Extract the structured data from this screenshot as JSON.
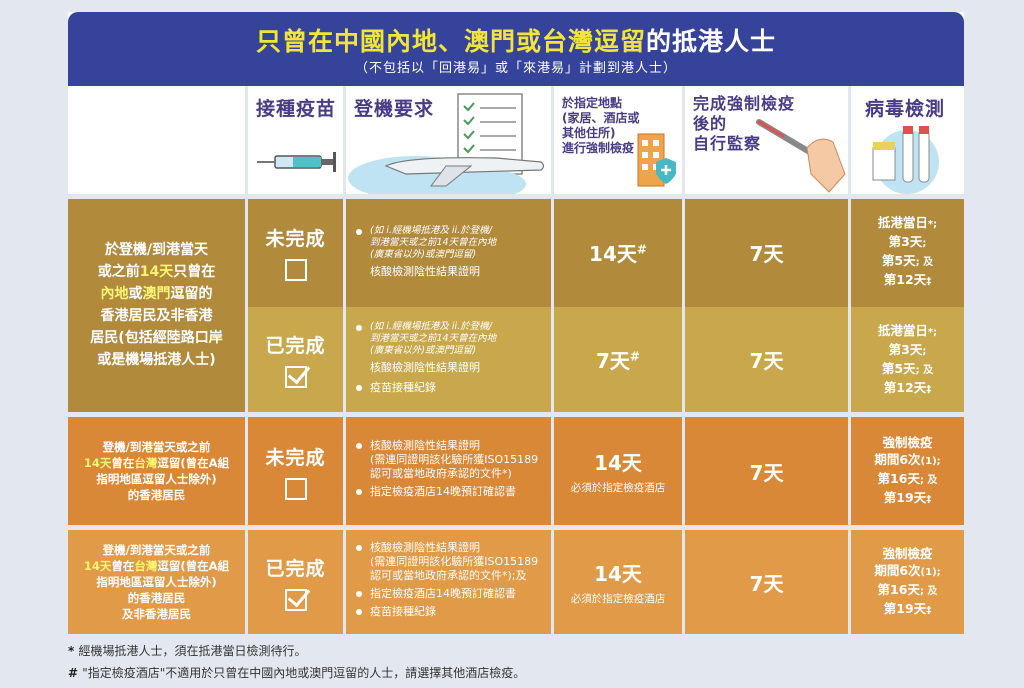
{
  "header": {
    "title_part1": "只曾在中國內地、澳門或台灣逗留",
    "title_part2": "的抵港人士",
    "subtitle": "（不包括以「回港易」或「來港易」計劃到港人士）"
  },
  "columns": {
    "vaccine": "接種疫苗",
    "boarding": "登機要求",
    "quarantine": "於指定地點\n(家居、酒店或\n其他住所)\n進行強制檢疫",
    "monitoring": "完成強制檢疫\n後的\n自行監察",
    "testing": "病毒檢測"
  },
  "groups": [
    {
      "desc_lines": [
        [
          {
            "t": "於登機/到港當天"
          }
        ],
        [
          {
            "t": "或之前"
          },
          {
            "t": "14天",
            "hl": true
          },
          {
            "t": "只曾在"
          }
        ],
        [
          {
            "t": "內地",
            "hl": true
          },
          {
            "t": "或"
          },
          {
            "t": "澳門",
            "hl": true
          },
          {
            "t": "逗留的"
          }
        ],
        [
          {
            "t": "香港居民及非香港"
          }
        ],
        [
          {
            "t": "居民(包括經陸路口岸"
          }
        ],
        [
          {
            "t": "或是機場抵港人士)"
          }
        ]
      ],
      "rows": [
        {
          "vaccine": "未完成",
          "checked": false,
          "boarding_note": "(如 i.經機場抵港及 ii.於登機/\n到港當天或之前14天曾在內地\n(廣東省以外)或澳門逗留)",
          "boarding_items": [
            "核酸檢測陰性結果證明"
          ],
          "quarantine": "14天",
          "quarantine_mark": "#",
          "quarantine_note": "",
          "monitoring": "7天",
          "testing": [
            [
              "抵港當日",
              "*;"
            ],
            [
              "第3天",
              ";"
            ],
            [
              "第5天",
              "; 及"
            ],
            [
              "第12天",
              "‡"
            ]
          ]
        },
        {
          "vaccine": "已完成",
          "checked": true,
          "boarding_note": "(如 i.經機場抵港及 ii.於登機/\n到港當天或之前14天曾在內地\n(廣東省以外)或澳門逗留)",
          "boarding_items": [
            "核酸檢測陰性結果證明",
            "疫苗接種紀錄"
          ],
          "quarantine": "7天",
          "quarantine_mark": "#",
          "quarantine_note": "",
          "monitoring": "7天",
          "testing": [
            [
              "抵港當日",
              "*;"
            ],
            [
              "第3天",
              ";"
            ],
            [
              "第5天",
              "; 及"
            ],
            [
              "第12天",
              "‡"
            ]
          ]
        }
      ]
    },
    {
      "desc_lines": [
        [
          {
            "t": "登機/到港當天或之前"
          }
        ],
        [
          {
            "t": "14天",
            "hl": true
          },
          {
            "t": "曾在"
          },
          {
            "t": "台灣",
            "hl": true
          },
          {
            "t": "逗留(曾在A組"
          }
        ],
        [
          {
            "t": "指明地區逗留人士除外)"
          }
        ],
        [
          {
            "t": "的香港居民"
          }
        ]
      ],
      "rows": [
        {
          "vaccine": "未完成",
          "checked": false,
          "boarding_note": "",
          "boarding_items": [
            "核酸檢測陰性結果證明\n(需連同證明該化驗所獲ISO15189\n認可或當地政府承認的文件*)",
            "指定檢疫酒店14晚預訂確認書"
          ],
          "quarantine": "14天",
          "quarantine_mark": "",
          "quarantine_note": "必須於指定檢疫酒店",
          "monitoring": "7天",
          "testing": [
            [
              "強制檢疫",
              ""
            ],
            [
              "期間6次",
              "(1);"
            ],
            [
              "第16天",
              "; 及"
            ],
            [
              "第19天",
              "‡"
            ]
          ]
        }
      ]
    },
    {
      "desc_lines": [
        [
          {
            "t": "登機/到港當天或之前"
          }
        ],
        [
          {
            "t": "14天",
            "hl": true
          },
          {
            "t": "曾在"
          },
          {
            "t": "台灣",
            "hl": true
          },
          {
            "t": "逗留(曾在A組"
          }
        ],
        [
          {
            "t": "指明地區逗留人士除外)"
          }
        ],
        [
          {
            "t": "的香港居民"
          }
        ],
        [
          {
            "t": "及非香港居民"
          }
        ]
      ],
      "rows": [
        {
          "vaccine": "已完成",
          "checked": true,
          "boarding_note": "",
          "boarding_items": [
            "核酸檢測陰性結果證明\n(需連同證明該化驗所獲ISO15189\n認可或當地政府承認的文件*);及",
            "指定檢疫酒店14晚預訂確認書",
            "疫苗接種紀錄"
          ],
          "quarantine": "14天",
          "quarantine_mark": "",
          "quarantine_note": "必須於指定檢疫酒店",
          "monitoring": "7天",
          "testing": [
            [
              "強制檢疫",
              ""
            ],
            [
              "期間6次",
              "(1);"
            ],
            [
              "第16天",
              "; 及"
            ],
            [
              "第19天",
              "‡"
            ]
          ]
        }
      ]
    }
  ],
  "footnotes": [
    {
      "mark": "*",
      "text": "經機場抵港人士，須在抵港當日檢測待行。"
    },
    {
      "mark": "#",
      "text": "\"指定檢疫酒店\"不適用於只曾在中國內地或澳門逗留的人士，請選擇其他酒店檢疫。"
    }
  ],
  "colors": {
    "header_bg": "#35449a",
    "title_highlight": "#f3e43a",
    "group1_dark": "#b28a3c",
    "group1_light": "#c9a84d",
    "group2": "#d98838",
    "group3": "#e19a48"
  }
}
